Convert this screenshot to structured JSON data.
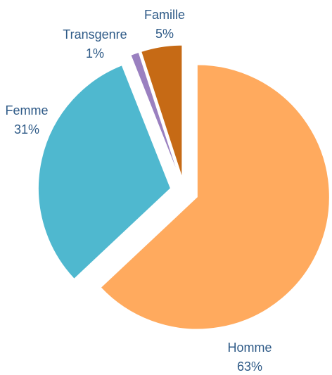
{
  "chart_data": {
    "type": "pie",
    "categories": [
      "Homme",
      "Femme",
      "Transgenre",
      "Famille"
    ],
    "values": [
      63,
      31,
      1,
      5
    ],
    "value_labels": [
      "63%",
      "31%",
      "1%",
      "5%"
    ],
    "colors": [
      "#ffaa5e",
      "#4fb8cf",
      "#9a80c0",
      "#c66a15"
    ]
  }
}
